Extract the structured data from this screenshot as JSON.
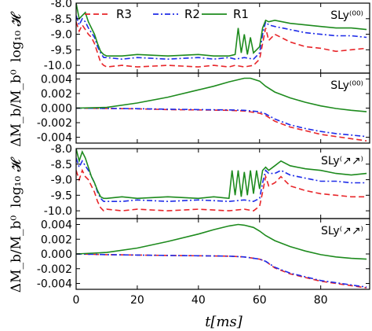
{
  "chart_data": [
    {
      "type": "line",
      "ylabel": "log₁₀ 𝓗",
      "ylim": [
        -10.25,
        -8.0
      ],
      "yticks": [
        "-8.0",
        "-8.5",
        "-9.0",
        "-9.5",
        "-10.0"
      ],
      "label": "SLy⁽⁰⁰⁾",
      "legend": [
        "R3",
        "R2",
        "R1"
      ],
      "series": [
        {
          "name": "R3",
          "color": "#e8262a",
          "dash": "dashed",
          "x": [
            0,
            1,
            2,
            3,
            4,
            5,
            6,
            7,
            8,
            9,
            10,
            15,
            20,
            30,
            40,
            45,
            50,
            52,
            55,
            58,
            60,
            61,
            62,
            63,
            65,
            70,
            75,
            80,
            85,
            90,
            95
          ],
          "y": [
            -8.6,
            -8.9,
            -8.7,
            -8.85,
            -9.0,
            -9.1,
            -9.3,
            -9.6,
            -9.9,
            -10.0,
            -10.05,
            -10.0,
            -10.05,
            -10.0,
            -10.05,
            -10.0,
            -10.05,
            -10.0,
            -10.05,
            -10.0,
            -9.8,
            -9.3,
            -8.8,
            -9.2,
            -9.0,
            -9.25,
            -9.4,
            -9.45,
            -9.55,
            -9.5,
            -9.45
          ]
        },
        {
          "name": "R2",
          "color": "#1f2de8",
          "dash": "dashdot",
          "x": [
            0,
            1,
            2,
            3,
            4,
            5,
            6,
            7,
            8,
            9,
            10,
            15,
            20,
            30,
            40,
            45,
            50,
            52,
            55,
            58,
            60,
            61,
            62,
            63,
            65,
            70,
            75,
            80,
            85,
            90,
            95
          ],
          "y": [
            -8.4,
            -8.7,
            -8.5,
            -8.6,
            -8.8,
            -8.95,
            -9.1,
            -9.4,
            -9.6,
            -9.75,
            -9.75,
            -9.8,
            -9.75,
            -9.8,
            -9.75,
            -9.8,
            -9.75,
            -9.8,
            -9.75,
            -9.8,
            -9.6,
            -9.0,
            -8.6,
            -8.7,
            -8.75,
            -8.85,
            -8.95,
            -9.0,
            -9.05,
            -9.05,
            -9.1
          ]
        },
        {
          "name": "R1",
          "color": "#1e8b1e",
          "dash": "solid",
          "x": [
            0,
            1,
            2,
            3,
            4,
            5,
            6,
            7,
            8,
            9,
            10,
            15,
            20,
            30,
            40,
            45,
            50,
            52,
            53,
            54,
            55,
            56,
            57,
            58,
            60,
            61,
            62,
            63,
            65,
            70,
            75,
            80,
            85,
            90,
            95
          ],
          "y": [
            -8.0,
            -8.5,
            -8.4,
            -8.3,
            -8.6,
            -8.8,
            -9.0,
            -9.3,
            -9.55,
            -9.65,
            -9.7,
            -9.7,
            -9.65,
            -9.7,
            -9.65,
            -9.7,
            -9.7,
            -9.65,
            -8.8,
            -9.6,
            -9.0,
            -9.65,
            -9.1,
            -9.6,
            -9.4,
            -8.8,
            -8.55,
            -8.6,
            -8.55,
            -8.65,
            -8.7,
            -8.75,
            -8.8,
            -8.8,
            -8.85
          ]
        }
      ]
    },
    {
      "type": "line",
      "ylabel": "ΔM_b/M_b⁰",
      "ylim": [
        -0.0048,
        0.0048
      ],
      "yticks": [
        "0.004",
        "0.002",
        "0.000",
        "-0.002",
        "-0.004"
      ],
      "label": "SLy⁽⁰⁰⁾",
      "series": [
        {
          "name": "R3",
          "color": "#e8262a",
          "dash": "dashed",
          "x": [
            0,
            10,
            20,
            30,
            40,
            50,
            55,
            60,
            62,
            65,
            70,
            75,
            80,
            85,
            90,
            95
          ],
          "y": [
            0,
            -5e-05,
            -0.0001,
            -0.0002,
            -0.00025,
            -0.0003,
            -0.0004,
            -0.0007,
            -0.001,
            -0.0018,
            -0.0026,
            -0.0031,
            -0.0036,
            -0.0039,
            -0.0042,
            -0.0045
          ]
        },
        {
          "name": "R2",
          "color": "#1f2de8",
          "dash": "dashdot",
          "x": [
            0,
            10,
            20,
            30,
            40,
            50,
            55,
            60,
            62,
            65,
            70,
            75,
            80,
            85,
            90,
            95
          ],
          "y": [
            0,
            -4e-05,
            -8e-05,
            -0.00015,
            -0.0002,
            -0.00025,
            -0.0003,
            -0.0005,
            -0.0008,
            -0.0015,
            -0.0023,
            -0.0028,
            -0.0032,
            -0.0035,
            -0.0037,
            -0.0039
          ]
        },
        {
          "name": "R1",
          "color": "#1e8b1e",
          "dash": "solid",
          "x": [
            0,
            10,
            20,
            30,
            40,
            45,
            50,
            55,
            57,
            60,
            62,
            65,
            70,
            75,
            80,
            85,
            90,
            95
          ],
          "y": [
            0,
            0.0001,
            0.0007,
            0.0015,
            0.0025,
            0.003,
            0.0036,
            0.0041,
            0.0041,
            0.0037,
            0.003,
            0.0022,
            0.0014,
            0.0008,
            0.0003,
            -5e-05,
            -0.0003,
            -0.0005
          ]
        }
      ]
    },
    {
      "type": "line",
      "ylabel": "log₁₀ 𝓗",
      "ylim": [
        -10.25,
        -8.0
      ],
      "yticks": [
        "-8.0",
        "-8.5",
        "-9.0",
        "-9.5",
        "-10.0"
      ],
      "label": "SLy⁽↗↗⁾",
      "series": [
        {
          "name": "R3",
          "color": "#e8262a",
          "dash": "dashed",
          "x": [
            0,
            1,
            2,
            3,
            4,
            5,
            6,
            7,
            8,
            9,
            10,
            15,
            20,
            30,
            40,
            50,
            55,
            58,
            60,
            61,
            62,
            63,
            65,
            67,
            70,
            75,
            80,
            85,
            90,
            95
          ],
          "y": [
            -8.7,
            -9.0,
            -8.7,
            -8.9,
            -9.0,
            -9.2,
            -9.4,
            -9.7,
            -9.9,
            -10.0,
            -9.95,
            -10.0,
            -9.95,
            -10.0,
            -9.95,
            -10.0,
            -9.95,
            -10.0,
            -9.85,
            -9.4,
            -8.9,
            -9.2,
            -9.1,
            -8.9,
            -9.2,
            -9.35,
            -9.45,
            -9.5,
            -9.55,
            -9.55
          ]
        },
        {
          "name": "R2",
          "color": "#1f2de8",
          "dash": "dashdot",
          "x": [
            0,
            1,
            2,
            3,
            4,
            5,
            6,
            7,
            8,
            9,
            10,
            15,
            20,
            30,
            40,
            50,
            55,
            58,
            60,
            61,
            62,
            63,
            65,
            67,
            70,
            75,
            80,
            85,
            90,
            95
          ],
          "y": [
            -8.3,
            -8.6,
            -8.4,
            -8.55,
            -8.7,
            -8.9,
            -9.1,
            -9.4,
            -9.6,
            -9.7,
            -9.7,
            -9.7,
            -9.65,
            -9.7,
            -9.65,
            -9.7,
            -9.65,
            -9.7,
            -9.6,
            -9.1,
            -8.7,
            -8.8,
            -8.8,
            -8.7,
            -8.85,
            -8.95,
            -9.05,
            -9.05,
            -9.1,
            -9.1
          ]
        },
        {
          "name": "R1",
          "color": "#1e8b1e",
          "dash": "solid",
          "x": [
            0,
            1,
            2,
            3,
            4,
            5,
            6,
            7,
            8,
            9,
            10,
            15,
            20,
            30,
            40,
            45,
            50,
            51,
            52,
            53,
            54,
            55,
            56,
            57,
            58,
            59,
            60,
            61,
            62,
            63,
            65,
            67,
            70,
            75,
            80,
            85,
            90,
            95
          ],
          "y": [
            -8.0,
            -8.4,
            -8.1,
            -8.3,
            -8.6,
            -8.9,
            -9.1,
            -9.35,
            -9.55,
            -9.6,
            -9.6,
            -9.55,
            -9.6,
            -9.55,
            -9.6,
            -9.55,
            -9.6,
            -8.7,
            -9.5,
            -8.7,
            -9.55,
            -8.75,
            -9.5,
            -8.7,
            -9.45,
            -8.7,
            -9.3,
            -8.7,
            -8.6,
            -8.7,
            -8.55,
            -8.4,
            -8.55,
            -8.65,
            -8.7,
            -8.8,
            -8.85,
            -8.8
          ]
        }
      ]
    },
    {
      "type": "line",
      "ylabel": "ΔM_b/M_b⁰",
      "ylim": [
        -0.0048,
        0.0048
      ],
      "yticks": [
        "0.004",
        "0.002",
        "0.000",
        "-0.002",
        "-0.004"
      ],
      "label": "SLy⁽↗↗⁾",
      "xlabel": "t[ms]",
      "xticks": [
        "0",
        "20",
        "40",
        "60",
        "80"
      ],
      "series": [
        {
          "name": "R3",
          "color": "#e8262a",
          "dash": "dashed",
          "x": [
            0,
            10,
            20,
            30,
            40,
            50,
            55,
            60,
            62,
            65,
            70,
            75,
            80,
            85,
            90,
            95
          ],
          "y": [
            0,
            -0.0001,
            -0.00015,
            -0.0002,
            -0.00025,
            -0.0003,
            -0.0004,
            -0.0007,
            -0.001,
            -0.0019,
            -0.0027,
            -0.0032,
            -0.0037,
            -0.004,
            -0.0043,
            -0.0046
          ]
        },
        {
          "name": "R2",
          "color": "#1f2de8",
          "dash": "dashdot",
          "x": [
            0,
            10,
            20,
            30,
            40,
            50,
            55,
            60,
            62,
            65,
            70,
            75,
            80,
            85,
            90,
            95
          ],
          "y": [
            0,
            -0.0001,
            -0.00015,
            -0.0002,
            -0.00025,
            -0.0003,
            -0.0004,
            -0.0007,
            -0.001,
            -0.0018,
            -0.0026,
            -0.0031,
            -0.0036,
            -0.0039,
            -0.0042,
            -0.0045
          ]
        },
        {
          "name": "R1",
          "color": "#1e8b1e",
          "dash": "solid",
          "x": [
            0,
            10,
            20,
            30,
            40,
            45,
            50,
            53,
            55,
            58,
            60,
            62,
            65,
            70,
            75,
            80,
            85,
            90,
            95
          ],
          "y": [
            0,
            0.0002,
            0.0008,
            0.0017,
            0.0027,
            0.0033,
            0.0038,
            0.004,
            0.0039,
            0.0036,
            0.0031,
            0.0025,
            0.0018,
            0.001,
            0.0004,
            -0.0001,
            -0.0004,
            -0.0006,
            -0.0007
          ]
        }
      ]
    }
  ]
}
